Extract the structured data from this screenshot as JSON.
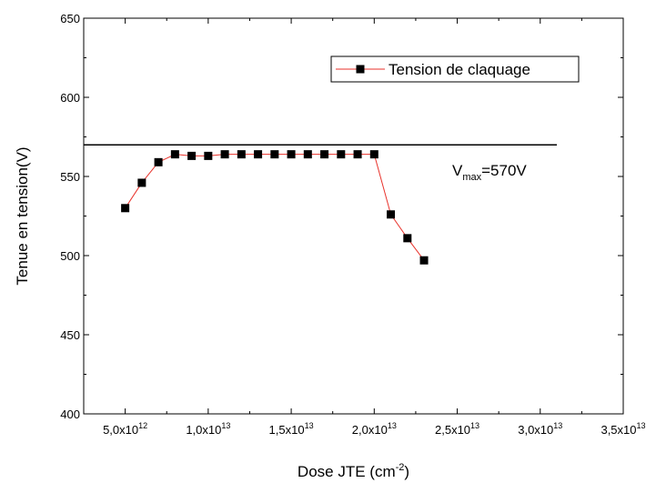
{
  "chart_data": {
    "type": "line",
    "xlabel": "Dose JTE (cm",
    "xlabel_sup": "-2",
    "xlabel_end": ")",
    "ylabel": "Tenue en tension(V)",
    "xlim": [
      2500000000000.0,
      35000000000000.0
    ],
    "ylim": [
      400,
      650
    ],
    "x_ticks": [
      {
        "value": 5000000000000.0,
        "mant": "5,0x10",
        "exp": "12"
      },
      {
        "value": 10000000000000.0,
        "mant": "1,0x10",
        "exp": "13"
      },
      {
        "value": 15000000000000.0,
        "mant": "1,5x10",
        "exp": "13"
      },
      {
        "value": 20000000000000.0,
        "mant": "2,0x10",
        "exp": "13"
      },
      {
        "value": 25000000000000.0,
        "mant": "2,5x10",
        "exp": "13"
      },
      {
        "value": 30000000000000.0,
        "mant": "3,0x10",
        "exp": "13"
      },
      {
        "value": 35000000000000.0,
        "mant": "3,5x10",
        "exp": "13"
      }
    ],
    "y_ticks": [
      400,
      450,
      500,
      550,
      600,
      650
    ],
    "legend_position": "top-right",
    "series": [
      {
        "name": "Tension de claquage",
        "color": "#e8322b",
        "marker": "square",
        "marker_color": "#000000",
        "points": [
          {
            "x": 5000000000000.0,
            "y": 530
          },
          {
            "x": 6000000000000.0,
            "y": 546
          },
          {
            "x": 7000000000000.0,
            "y": 559
          },
          {
            "x": 8000000000000.0,
            "y": 564
          },
          {
            "x": 9000000000000.0,
            "y": 563
          },
          {
            "x": 10000000000000.0,
            "y": 563
          },
          {
            "x": 11000000000000.0,
            "y": 564
          },
          {
            "x": 12000000000000.0,
            "y": 564
          },
          {
            "x": 13000000000000.0,
            "y": 564
          },
          {
            "x": 14000000000000.0,
            "y": 564
          },
          {
            "x": 15000000000000.0,
            "y": 564
          },
          {
            "x": 16000000000000.0,
            "y": 564
          },
          {
            "x": 17000000000000.0,
            "y": 564
          },
          {
            "x": 18000000000000.0,
            "y": 564
          },
          {
            "x": 19000000000000.0,
            "y": 564
          },
          {
            "x": 20000000000000.0,
            "y": 564
          },
          {
            "x": 21000000000000.0,
            "y": 526
          },
          {
            "x": 22000000000000.0,
            "y": 511
          },
          {
            "x": 23000000000000.0,
            "y": 497
          }
        ]
      }
    ],
    "reference_line": {
      "y": 570,
      "x_end": 31000000000000.0,
      "color": "#000000"
    },
    "annotation": {
      "v": "V",
      "sub": "max",
      "rest": "=570V"
    }
  }
}
